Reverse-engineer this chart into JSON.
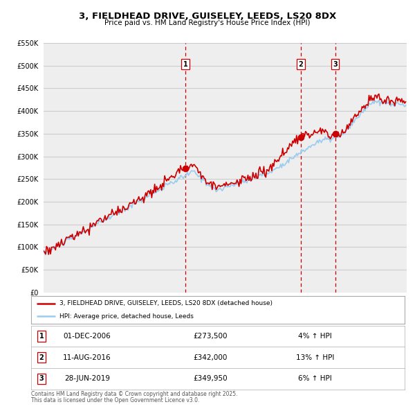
{
  "title": "3, FIELDHEAD DRIVE, GUISELEY, LEEDS, LS20 8DX",
  "subtitle": "Price paid vs. HM Land Registry's House Price Index (HPI)",
  "legend_label_red": "3, FIELDHEAD DRIVE, GUISELEY, LEEDS, LS20 8DX (detached house)",
  "legend_label_blue": "HPI: Average price, detached house, Leeds",
  "footnote_line1": "Contains HM Land Registry data © Crown copyright and database right 2025.",
  "footnote_line2": "This data is licensed under the Open Government Licence v3.0.",
  "transactions": [
    {
      "num": 1,
      "date": "01-DEC-2006",
      "year": 2006.92,
      "price": 273500,
      "pct": "4%",
      "dir": "↑"
    },
    {
      "num": 2,
      "date": "11-AUG-2016",
      "year": 2016.61,
      "price": 342000,
      "pct": "13%",
      "dir": "↑"
    },
    {
      "num": 3,
      "date": "28-JUN-2019",
      "year": 2019.49,
      "price": 349950,
      "pct": "6%",
      "dir": "↑"
    }
  ],
  "ylim": [
    0,
    550000
  ],
  "ytick_step": 50000,
  "xmin": 1995,
  "xmax": 2025.5,
  "red_color": "#cc0000",
  "blue_color": "#99ccee",
  "vline_color": "#cc0000",
  "grid_color": "#cccccc",
  "bg_color": "#ffffff",
  "plot_bg_color": "#eeeeee"
}
